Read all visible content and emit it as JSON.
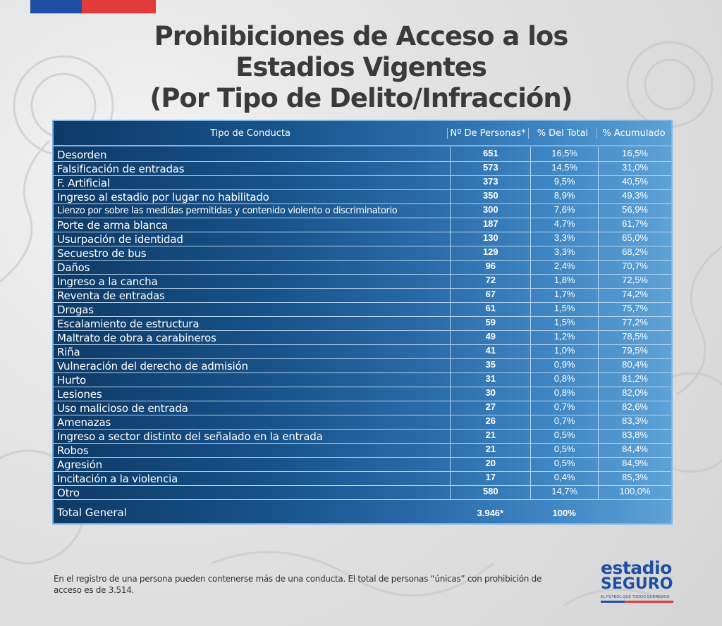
{
  "title": {
    "line1": "Prohibiciones de Acceso a los",
    "line2": "Estadios Vigentes",
    "line3": "(Por Tipo de Delito/Infracción)"
  },
  "table": {
    "headers": [
      "Tipo de Conducta",
      "Nº De Personas*",
      "% Del Total",
      "% Acumulado"
    ],
    "rows": [
      [
        "Desorden",
        "651",
        "16,5%",
        "16,5%"
      ],
      [
        "Falsificación de entradas",
        "573",
        "14,5%",
        "31,0%"
      ],
      [
        "F. Artificial",
        "373",
        "9,5%",
        "40,5%"
      ],
      [
        "Ingreso al estadio por lugar no habilitado",
        "350",
        "8,9%",
        "49,3%"
      ],
      [
        "Lienzo por sobre las medidas permitidas y contenido violento o discriminatorio",
        "300",
        "7,6%",
        "56,9%"
      ],
      [
        "Porte de arma blanca",
        "187",
        "4,7%",
        "61,7%"
      ],
      [
        "Usurpación de identidad",
        "130",
        "3,3%",
        "65,0%"
      ],
      [
        "Secuestro de bus",
        "129",
        "3,3%",
        "68,2%"
      ],
      [
        "Daños",
        "96",
        "2,4%",
        "70,7%"
      ],
      [
        "Ingreso a la cancha",
        "72",
        "1,8%",
        "72,5%"
      ],
      [
        "Reventa de entradas",
        "67",
        "1,7%",
        "74,2%"
      ],
      [
        "Drogas",
        "61",
        "1,5%",
        "75,7%"
      ],
      [
        "Escalamiento de estructura",
        "59",
        "1,5%",
        "77,2%"
      ],
      [
        "Maltrato de obra a carabineros",
        "49",
        "1,2%",
        "78,5%"
      ],
      [
        "Riña",
        "41",
        "1,0%",
        "79,5%"
      ],
      [
        "Vulneración del derecho de admisión",
        "35",
        "0,9%",
        "80,4%"
      ],
      [
        "Hurto",
        "31",
        "0,8%",
        "81,2%"
      ],
      [
        "Lesiones",
        "30",
        "0,8%",
        "82,0%"
      ],
      [
        "Uso malicioso de entrada",
        "27",
        "0,7%",
        "82,6%"
      ],
      [
        "Amenazas",
        "26",
        "0,7%",
        "83,3%"
      ],
      [
        "Ingreso a sector distinto del señalado en la entrada",
        "21",
        "0,5%",
        "83,8%"
      ],
      [
        "Robos",
        "21",
        "0,5%",
        "84,4%"
      ],
      [
        "Agresión",
        "20",
        "0,5%",
        "84,9%"
      ],
      [
        "Incitación a la violencia",
        "17",
        "0,4%",
        "85,3%"
      ],
      [
        "Otro",
        "580",
        "14,7%",
        "100,0%"
      ]
    ],
    "total": {
      "label": "Total General",
      "personas": "3.946*",
      "pct": "100%"
    }
  },
  "footnote": "En el registro de una persona pueden contenerse más de una conducta. El total de personas “únicas” con prohibición de acceso es de 3.514.",
  "logo": {
    "line1": "estadio",
    "line2": "SEGURO",
    "tagline": "EL FÚTBOL QUE TODOS QUEREMOS"
  },
  "colors": {
    "flag_blue": "#1f4fa3",
    "flag_red": "#e23b3b",
    "table_dark": "#0e3a66",
    "table_light": "#5ea2d6"
  }
}
